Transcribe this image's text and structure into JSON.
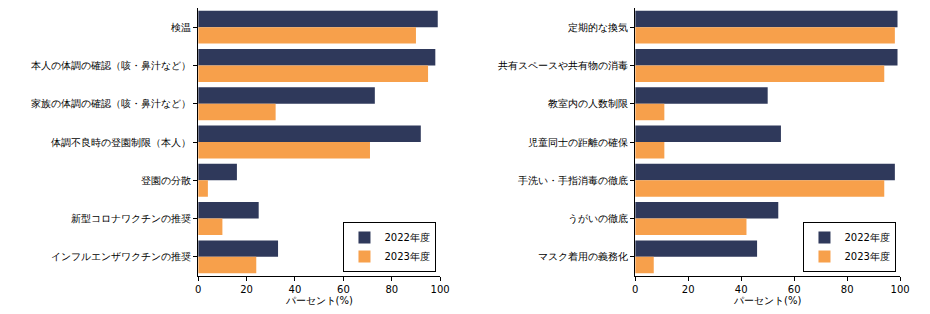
{
  "chart_data": [
    {
      "type": "bar",
      "orientation": "horizontal",
      "categories": [
        "検温",
        "本人の体調の確認（咳・鼻汁など）",
        "家族の体調の確認（咳・鼻汁など）",
        "体調不良時の登園制限（本人）",
        "登園の分散",
        "新型コロナワクチンの推奨",
        "インフルエンザワクチンの推奨"
      ],
      "series": [
        {
          "name": "2022年度",
          "color": "#2f395b",
          "values": [
            99,
            98,
            73,
            92,
            16,
            25,
            33
          ]
        },
        {
          "name": "2023年度",
          "color": "#f7a04b",
          "values": [
            90,
            95,
            32,
            71,
            4,
            10,
            24
          ]
        }
      ],
      "x_label": "パーセント(%)",
      "xlim": [
        0,
        100
      ],
      "xticks": [
        0,
        20,
        40,
        60,
        80,
        100
      ],
      "grid": false,
      "legend": "lower right"
    },
    {
      "type": "bar",
      "orientation": "horizontal",
      "categories": [
        "定期的な換気",
        "共有スペースや共有物の消毒",
        "教室内の人数制限",
        "児童同士の距離の確保",
        "手洗い・手指消毒の徹底",
        "うがいの徹底",
        "マスク着用の義務化"
      ],
      "series": [
        {
          "name": "2022年度",
          "color": "#2f395b",
          "values": [
            99,
            99,
            50,
            55,
            98,
            54,
            46
          ]
        },
        {
          "name": "2023年度",
          "color": "#f7a04b",
          "values": [
            98,
            94,
            11,
            11,
            94,
            42,
            7
          ]
        }
      ],
      "x_label": "パーセント(%)",
      "xlim": [
        0,
        100
      ],
      "xticks": [
        0,
        20,
        40,
        60,
        80,
        100
      ],
      "grid": false,
      "legend": "lower right"
    }
  ]
}
